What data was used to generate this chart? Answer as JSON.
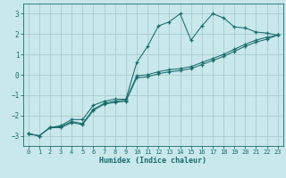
{
  "title": "",
  "xlabel": "Humidex (Indice chaleur)",
  "xlim": [
    -0.5,
    23.5
  ],
  "ylim": [
    -3.5,
    3.5
  ],
  "xticks": [
    0,
    1,
    2,
    3,
    4,
    5,
    6,
    7,
    8,
    9,
    10,
    11,
    12,
    13,
    14,
    15,
    16,
    17,
    18,
    19,
    20,
    21,
    22,
    23
  ],
  "yticks": [
    -3,
    -2,
    -1,
    0,
    1,
    2,
    3
  ],
  "bg_color": "#c8e8ec",
  "line_color": "#1a6b6b",
  "grid_color": "#aacccc",
  "s1_x": [
    0,
    1,
    2,
    3,
    4,
    5,
    6,
    7,
    8,
    9,
    10,
    11,
    12,
    13,
    14,
    15,
    16,
    17,
    18,
    19,
    20,
    21,
    22,
    23
  ],
  "s1_y": [
    -2.9,
    -3.0,
    -2.6,
    -2.5,
    -2.2,
    -2.2,
    -1.5,
    -1.3,
    -1.2,
    -1.2,
    0.6,
    1.4,
    2.4,
    2.6,
    3.0,
    1.7,
    2.4,
    3.0,
    2.8,
    2.35,
    2.3,
    2.1,
    2.05,
    1.95
  ],
  "s2_x": [
    0,
    1,
    2,
    3,
    4,
    5,
    6,
    7,
    8,
    9,
    10,
    11,
    12,
    13,
    14,
    15,
    16,
    17,
    18,
    19,
    20,
    21,
    22,
    23
  ],
  "s2_y": [
    -2.9,
    -3.0,
    -2.6,
    -2.55,
    -2.3,
    -2.4,
    -1.7,
    -1.4,
    -1.3,
    -1.25,
    -0.05,
    0.0,
    0.15,
    0.25,
    0.3,
    0.4,
    0.6,
    0.8,
    1.0,
    1.25,
    1.5,
    1.7,
    1.85,
    1.95
  ],
  "s3_x": [
    0,
    1,
    2,
    3,
    4,
    5,
    6,
    7,
    8,
    9,
    10,
    11,
    12,
    13,
    14,
    15,
    16,
    17,
    18,
    19,
    20,
    21,
    22,
    23
  ],
  "s3_y": [
    -2.9,
    -3.0,
    -2.6,
    -2.6,
    -2.35,
    -2.45,
    -1.75,
    -1.45,
    -1.35,
    -1.3,
    -0.15,
    -0.1,
    0.05,
    0.15,
    0.2,
    0.3,
    0.5,
    0.7,
    0.9,
    1.15,
    1.4,
    1.6,
    1.75,
    1.95
  ],
  "xlabel_fontsize": 6.0,
  "tick_fontsize": 5.0
}
